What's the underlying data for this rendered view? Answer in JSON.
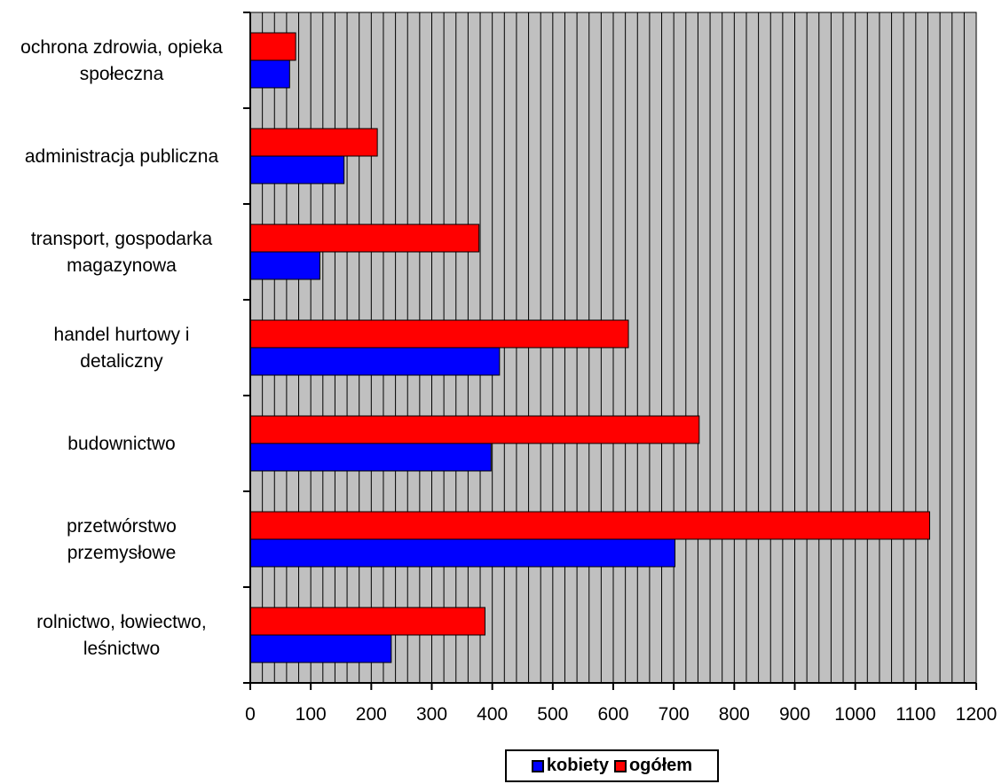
{
  "chart_data": {
    "type": "bar",
    "orientation": "horizontal",
    "categories": [
      [
        "ochrona zdrowia, opieka",
        "społeczna"
      ],
      [
        "administracja publiczna"
      ],
      [
        "transport, gospodarka",
        "magazynowa"
      ],
      [
        "handel hurtowy i",
        "detaliczny"
      ],
      [
        "budownictwo"
      ],
      [
        "przetwórstwo",
        "przemysłowe"
      ],
      [
        "rolnictwo, łowiectwo,",
        "leśnictwo"
      ]
    ],
    "series": [
      {
        "name": "kobiety",
        "color": "#0000ff",
        "values": [
          65,
          155,
          115,
          412,
          398,
          702,
          233
        ]
      },
      {
        "name": "ogółem",
        "color": "#ff0000",
        "values": [
          75,
          210,
          378,
          625,
          742,
          1123,
          388
        ]
      }
    ],
    "xlim": [
      0,
      1200
    ],
    "xticks": [
      "0",
      "100",
      "200",
      "300",
      "400",
      "500",
      "600",
      "700",
      "800",
      "900",
      "1000",
      "1100",
      "1200"
    ],
    "grid": "vertical",
    "plot_background": "#c0c0c0",
    "legend_position": "bottom"
  },
  "legend": {
    "kobiety": "kobiety",
    "ogolem": "ogółem"
  }
}
